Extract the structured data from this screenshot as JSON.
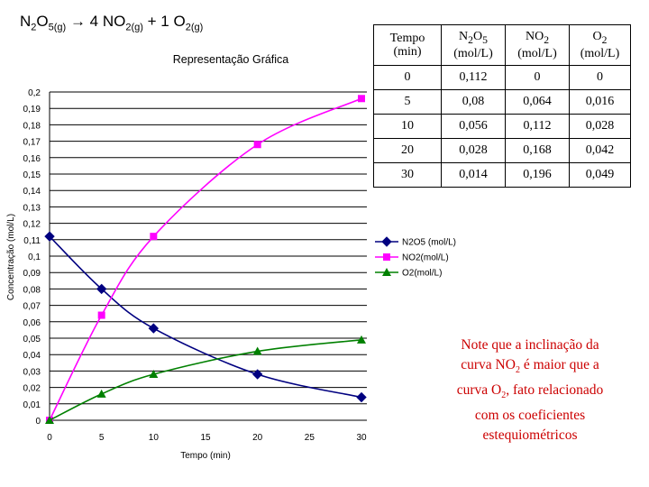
{
  "equation": {
    "reactant": "N",
    "reactant_sub1": "2",
    "reactant_o": "O",
    "reactant_sub2": "5(g)",
    "arrow": "→",
    "p1_coef": "4 NO",
    "p1_sub": "2(g)",
    "plus": "+ 1 O",
    "p2_sub": "2(g)"
  },
  "table": {
    "headers": [
      {
        "main": "Tempo",
        "unit": "(min)"
      },
      {
        "main": "N",
        "sub": "2",
        "main2": "O",
        "sub2": "5",
        "unit": "(mol/L)"
      },
      {
        "main": "NO",
        "sub": "2",
        "unit": "(mol/L)"
      },
      {
        "main": "O",
        "sub": "2",
        "unit": "(mol/L)"
      }
    ],
    "rows": [
      [
        "0",
        "0,112",
        "0",
        "0"
      ],
      [
        "5",
        "0,08",
        "0,064",
        "0,016"
      ],
      [
        "10",
        "0,056",
        "0,112",
        "0,028"
      ],
      [
        "20",
        "0,028",
        "0,168",
        "0,042"
      ],
      [
        "30",
        "0,014",
        "0,196",
        "0,049"
      ]
    ]
  },
  "note": {
    "line1": "Note que a inclinação da",
    "line2a": "curva NO",
    "line2sub": "2",
    "line2b": " é maior que a",
    "line3a": "curva O",
    "line3sub": "2",
    "line3b": ", fato relacionado",
    "line4": "com os coeficientes",
    "line5": "estequiométricos"
  },
  "chart_data": {
    "type": "line",
    "title": "Representação Gráfica",
    "xlabel": "Tempo (min)",
    "ylabel": "Concentração (mol/L)",
    "xlim": [
      0,
      30
    ],
    "ylim": [
      0,
      0.2
    ],
    "x_ticks": [
      "0",
      "5",
      "10",
      "15",
      "20",
      "25",
      "30"
    ],
    "y_ticks": [
      "0",
      "0,01",
      "0,02",
      "0,03",
      "0,04",
      "0,05",
      "0,06",
      "0,07",
      "0,08",
      "0,09",
      "0,1",
      "0,11",
      "0,12",
      "0,13",
      "0,14",
      "0,15",
      "0,16",
      "0,17",
      "0,18",
      "0,19",
      "0,2"
    ],
    "grid": true,
    "legend_position": "right",
    "series": [
      {
        "name": "N2O5 (mol/L)",
        "color": "#000080",
        "marker": "diamond",
        "x": [
          0,
          5,
          10,
          20,
          30
        ],
        "values": [
          0.112,
          0.08,
          0.056,
          0.028,
          0.014
        ]
      },
      {
        "name": "NO2(mol/L)",
        "color": "#ff00ff",
        "marker": "square",
        "x": [
          0,
          5,
          10,
          20,
          30
        ],
        "values": [
          0,
          0.064,
          0.112,
          0.168,
          0.196
        ]
      },
      {
        "name": "O2(mol/L)",
        "color": "#008000",
        "marker": "triangle",
        "x": [
          0,
          5,
          10,
          20,
          30
        ],
        "values": [
          0,
          0.016,
          0.028,
          0.042,
          0.049
        ]
      }
    ]
  }
}
